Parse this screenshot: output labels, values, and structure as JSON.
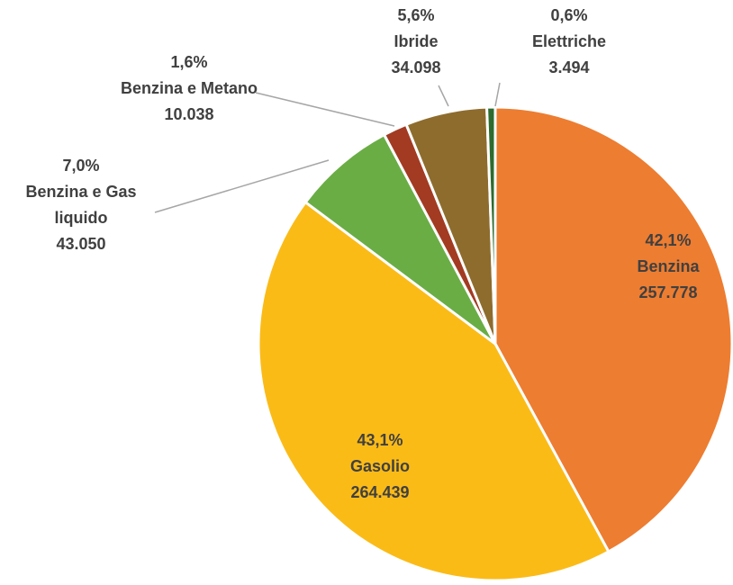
{
  "chart_data": {
    "type": "pie",
    "categories": [
      "Benzina",
      "Gasolio",
      "Benzina e Gas liquido",
      "Benzina e Metano",
      "Ibride",
      "Elettriche"
    ],
    "values": [
      257778,
      264439,
      43050,
      10038,
      34098,
      3494
    ],
    "value_labels": [
      "257.778",
      "264.439",
      "43.050",
      "10.038",
      "34.098",
      "3.494"
    ],
    "percents": [
      42.1,
      43.1,
      7.0,
      1.6,
      5.6,
      0.6
    ],
    "percent_labels": [
      "42,1%",
      "43,1%",
      "7,0%",
      "1,6%",
      "5,6%",
      "0,6%"
    ],
    "colors": [
      "#ED7D31",
      "#FBBB17",
      "#6AAD45",
      "#A23B22",
      "#8E6C2D",
      "#2E6B2E"
    ]
  }
}
